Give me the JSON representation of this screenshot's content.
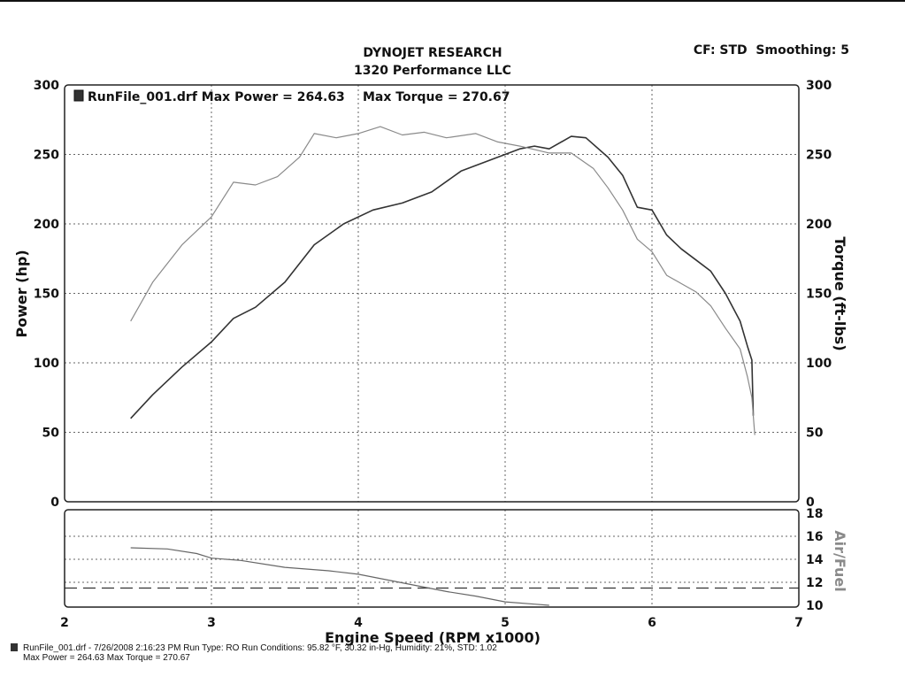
{
  "header": {
    "title": "DYNOJET RESEARCH",
    "subtitle": "1320 Performance LLC",
    "config": "CF: STD  Smoothing: 5"
  },
  "footer": {
    "line1": "RunFile_001.drf - 7/26/2008 2:16:23 PM  Run Type: RO  Run Conditions: 95.82 °F, 30.32 in-Hg,  Humidity:  21%, STD: 1.02",
    "line2": "Max Power = 264.63  Max Torque = 270.67"
  },
  "chart_data": [
    {
      "type": "line",
      "title": "DYNOJET RESEARCH",
      "subtitle": "1320 Performance LLC",
      "xlabel": "Engine Speed (RPM x1000)",
      "ylabel": "Power (hp)",
      "y2label": "Torque (ft-lbs)",
      "xlim": [
        2,
        7
      ],
      "ylim": [
        0,
        300
      ],
      "y2lim": [
        0,
        300
      ],
      "xticks": [
        2,
        3,
        4,
        5,
        6,
        7
      ],
      "yticks": [
        0,
        50,
        100,
        150,
        200,
        250,
        300
      ],
      "y2ticks": [
        0,
        50,
        100,
        150,
        200,
        250,
        300
      ],
      "grid": true,
      "legend": {
        "position": "top-left",
        "label": "RunFile_001.drf Max Power = 264.63",
        "extra": "Max Torque = 270.67"
      },
      "series": [
        {
          "name": "Power (hp)",
          "color": "#333333",
          "points": [
            [
              2.45,
              60
            ],
            [
              2.6,
              77
            ],
            [
              2.8,
              97
            ],
            [
              3.0,
              115
            ],
            [
              3.15,
              132
            ],
            [
              3.3,
              140
            ],
            [
              3.5,
              158
            ],
            [
              3.7,
              185
            ],
            [
              3.9,
              200
            ],
            [
              4.1,
              210
            ],
            [
              4.3,
              215
            ],
            [
              4.5,
              223
            ],
            [
              4.7,
              238
            ],
            [
              4.9,
              246
            ],
            [
              5.1,
              254
            ],
            [
              5.2,
              256
            ],
            [
              5.3,
              254
            ],
            [
              5.45,
              263
            ],
            [
              5.55,
              262
            ],
            [
              5.7,
              248
            ],
            [
              5.8,
              235
            ],
            [
              5.9,
              212
            ],
            [
              6.0,
              210
            ],
            [
              6.1,
              192
            ],
            [
              6.2,
              182
            ],
            [
              6.3,
              174
            ],
            [
              6.4,
              166
            ],
            [
              6.5,
              150
            ],
            [
              6.6,
              130
            ],
            [
              6.65,
              112
            ],
            [
              6.68,
              102
            ],
            [
              6.69,
              62
            ]
          ]
        },
        {
          "name": "Torque (ft-lbs)",
          "color": "#8a8a8a",
          "axis": "right",
          "points": [
            [
              2.45,
              130
            ],
            [
              2.6,
              158
            ],
            [
              2.8,
              185
            ],
            [
              3.0,
              205
            ],
            [
              3.15,
              230
            ],
            [
              3.3,
              228
            ],
            [
              3.45,
              234
            ],
            [
              3.6,
              248
            ],
            [
              3.7,
              265
            ],
            [
              3.85,
              262
            ],
            [
              4.0,
              265
            ],
            [
              4.15,
              270
            ],
            [
              4.3,
              264
            ],
            [
              4.45,
              266
            ],
            [
              4.6,
              262
            ],
            [
              4.8,
              265
            ],
            [
              4.95,
              259
            ],
            [
              5.1,
              256
            ],
            [
              5.3,
              251
            ],
            [
              5.45,
              251
            ],
            [
              5.6,
              240
            ],
            [
              5.7,
              226
            ],
            [
              5.8,
              210
            ],
            [
              5.9,
              189
            ],
            [
              6.0,
              180
            ],
            [
              6.1,
              163
            ],
            [
              6.2,
              157
            ],
            [
              6.3,
              151
            ],
            [
              6.4,
              141
            ],
            [
              6.5,
              125
            ],
            [
              6.6,
              110
            ],
            [
              6.65,
              90
            ],
            [
              6.68,
              75
            ],
            [
              6.7,
              48
            ]
          ]
        }
      ]
    },
    {
      "type": "line",
      "ylabel": "Air/Fuel",
      "xlim": [
        2,
        7
      ],
      "ylim": [
        10,
        18
      ],
      "yticks": [
        10,
        12,
        14,
        16,
        18
      ],
      "grid": true,
      "reference_line": 11.5,
      "series": [
        {
          "name": "Air/Fuel",
          "color": "#666666",
          "points": [
            [
              2.45,
              15.0
            ],
            [
              2.7,
              14.9
            ],
            [
              2.9,
              14.5
            ],
            [
              3.0,
              14.1
            ],
            [
              3.2,
              13.9
            ],
            [
              3.5,
              13.3
            ],
            [
              3.8,
              13.0
            ],
            [
              4.0,
              12.7
            ],
            [
              4.2,
              12.2
            ],
            [
              4.4,
              11.7
            ],
            [
              4.6,
              11.2
            ],
            [
              4.8,
              10.8
            ],
            [
              5.0,
              10.3
            ],
            [
              5.2,
              10.1
            ],
            [
              5.3,
              10.0
            ]
          ]
        }
      ]
    }
  ]
}
